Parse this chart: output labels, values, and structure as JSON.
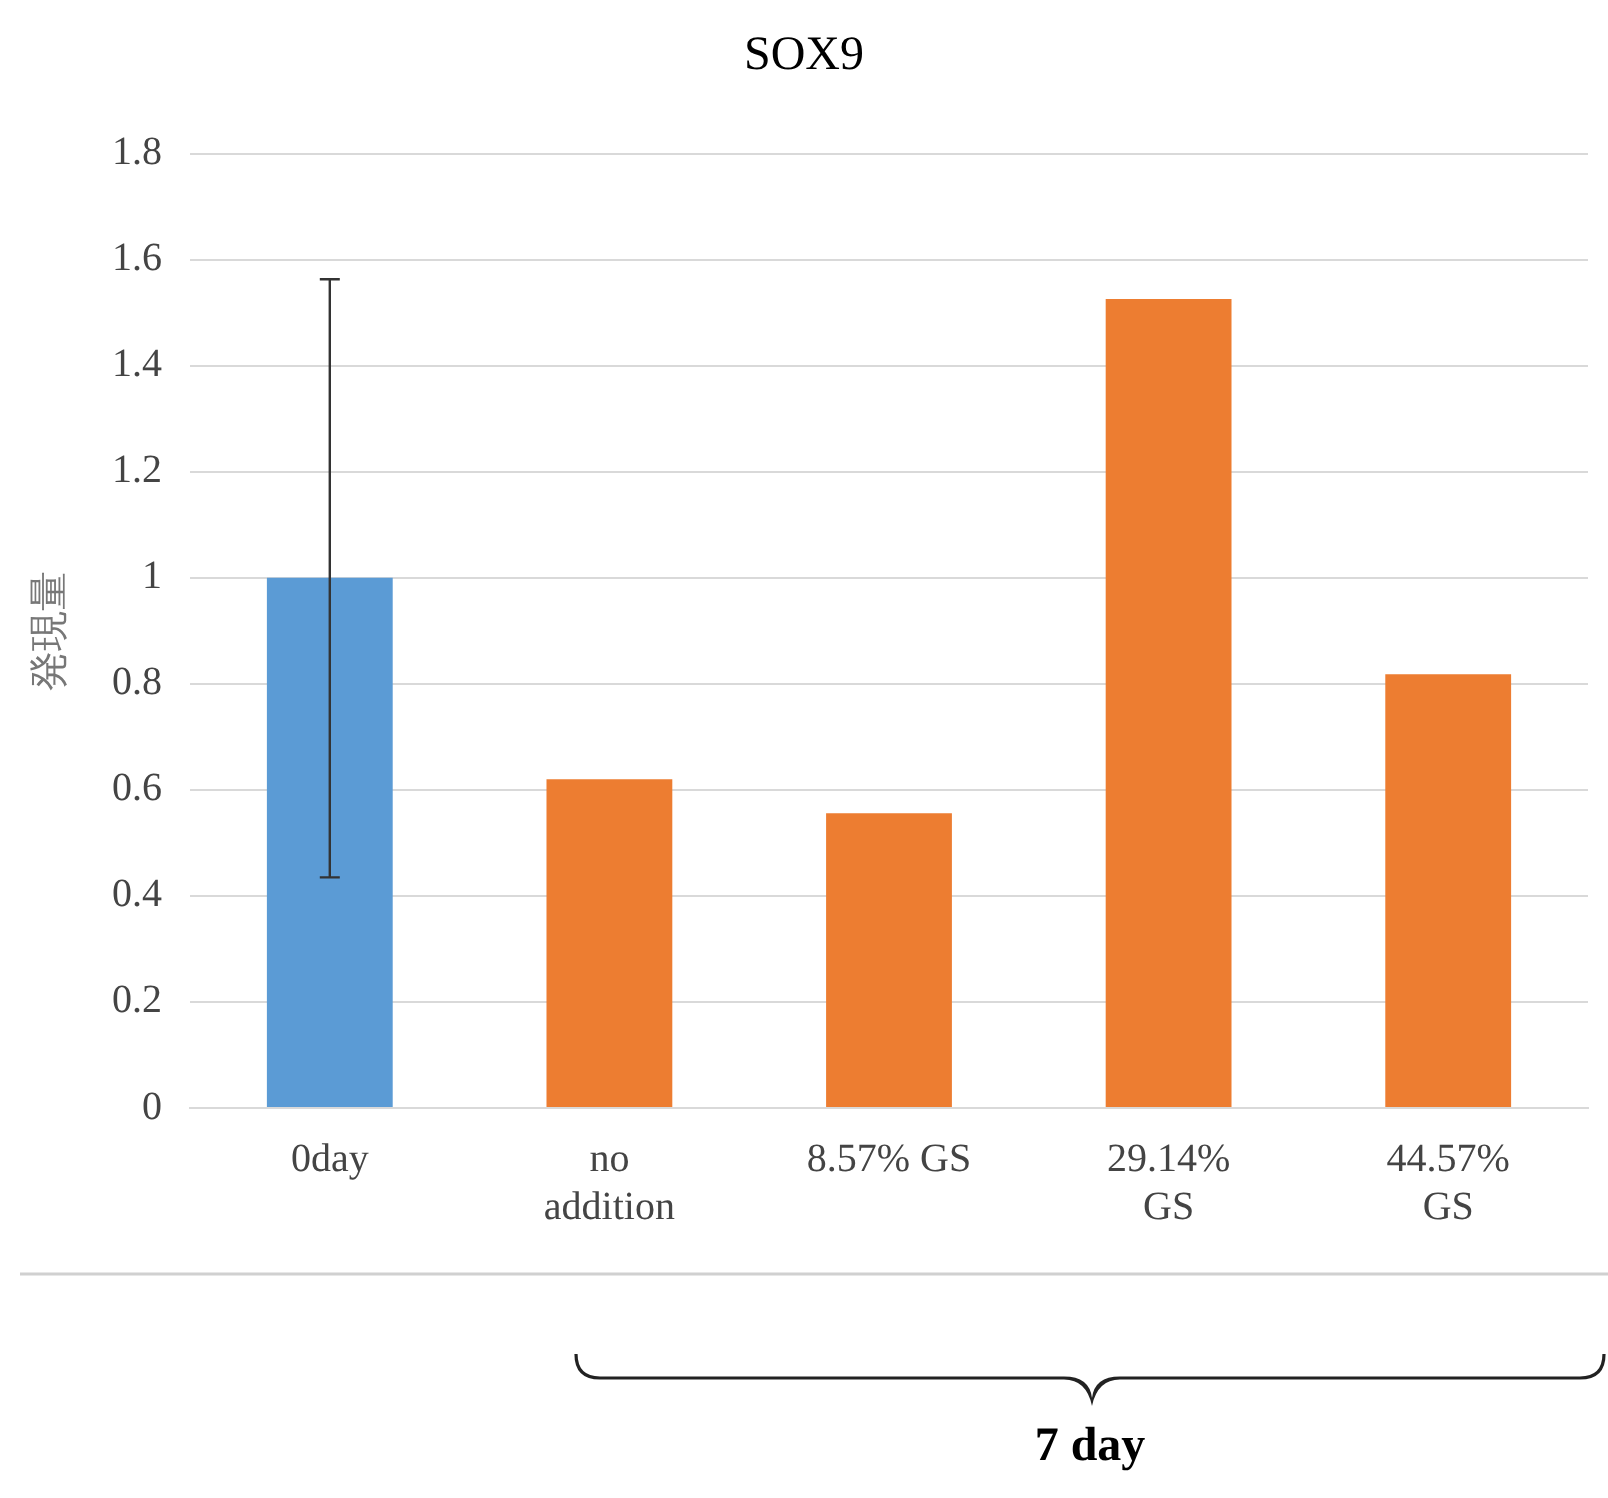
{
  "chart_data": {
    "type": "bar",
    "title": "SOX9",
    "ylabel": "発現量",
    "categories": [
      "0day",
      "no addition",
      "8.57% GS",
      "29.14% GS",
      "44.57% GS"
    ],
    "values": [
      1.0,
      0.62,
      0.556,
      1.526,
      0.818
    ],
    "colors": [
      "#5b9bd5",
      "#ed7d31",
      "#ed7d31",
      "#ed7d31",
      "#ed7d31"
    ],
    "errors": [
      [
        0.435,
        1.563
      ],
      null,
      null,
      null,
      null
    ],
    "ylim": [
      0,
      1.8
    ],
    "yticks": [
      0,
      0.2,
      0.4,
      0.6,
      0.8,
      1,
      1.2,
      1.4,
      1.6,
      1.8
    ],
    "grid": "y",
    "annotations": [
      "7 day"
    ]
  }
}
